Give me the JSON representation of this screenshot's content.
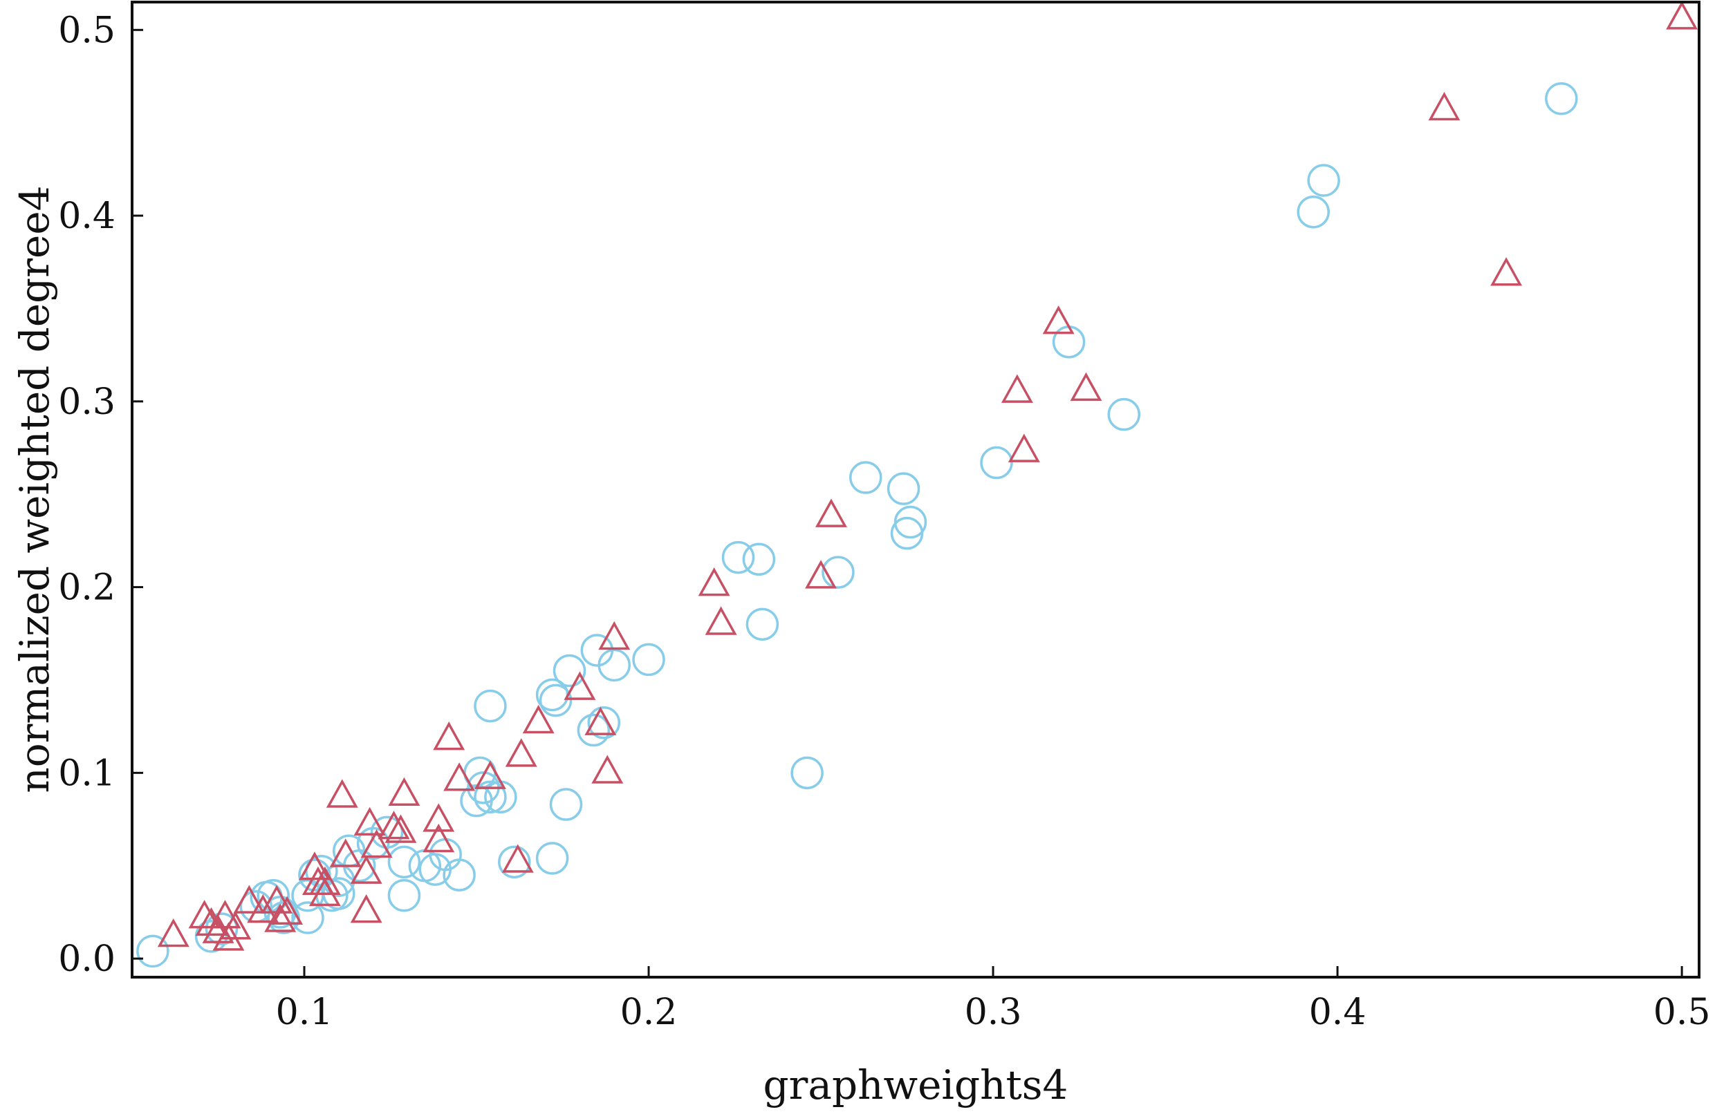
{
  "chart_data": {
    "type": "scatter",
    "title": "",
    "xlabel": "graphweights4",
    "ylabel": "normalized weighted degree4",
    "xlim": [
      0.05,
      0.505
    ],
    "ylim": [
      -0.01,
      0.515
    ],
    "xticks": [
      {
        "value": 0.1,
        "label": "0.1"
      },
      {
        "value": 0.2,
        "label": "0.2"
      },
      {
        "value": 0.3,
        "label": "0.3"
      },
      {
        "value": 0.4,
        "label": "0.4"
      },
      {
        "value": 0.5,
        "label": "0.5"
      }
    ],
    "yticks": [
      {
        "value": 0.0,
        "label": "0.0"
      },
      {
        "value": 0.1,
        "label": "0.1"
      },
      {
        "value": 0.2,
        "label": "0.2"
      },
      {
        "value": 0.3,
        "label": "0.3"
      },
      {
        "value": 0.4,
        "label": "0.4"
      },
      {
        "value": 0.5,
        "label": "0.5"
      }
    ],
    "grid": false,
    "legend": "none",
    "series": [
      {
        "marker": "circle",
        "color": "#87CDEA",
        "points": [
          [
            0.056,
            0.004
          ],
          [
            0.073,
            0.012
          ],
          [
            0.076,
            0.016
          ],
          [
            0.086,
            0.028
          ],
          [
            0.089,
            0.033
          ],
          [
            0.091,
            0.034
          ],
          [
            0.093,
            0.025
          ],
          [
            0.094,
            0.022
          ],
          [
            0.101,
            0.022
          ],
          [
            0.101,
            0.034
          ],
          [
            0.103,
            0.045
          ],
          [
            0.105,
            0.047
          ],
          [
            0.108,
            0.034
          ],
          [
            0.11,
            0.035
          ],
          [
            0.11,
            0.042
          ],
          [
            0.113,
            0.058
          ],
          [
            0.116,
            0.05
          ],
          [
            0.12,
            0.062
          ],
          [
            0.124,
            0.068
          ],
          [
            0.129,
            0.052
          ],
          [
            0.129,
            0.034
          ],
          [
            0.135,
            0.05
          ],
          [
            0.138,
            0.048
          ],
          [
            0.141,
            0.056
          ],
          [
            0.145,
            0.045
          ],
          [
            0.15,
            0.085
          ],
          [
            0.151,
            0.1
          ],
          [
            0.152,
            0.092
          ],
          [
            0.154,
            0.087
          ],
          [
            0.154,
            0.136
          ],
          [
            0.157,
            0.087
          ],
          [
            0.161,
            0.052
          ],
          [
            0.172,
            0.054
          ],
          [
            0.172,
            0.142
          ],
          [
            0.173,
            0.139
          ],
          [
            0.176,
            0.083
          ],
          [
            0.177,
            0.155
          ],
          [
            0.184,
            0.123
          ],
          [
            0.185,
            0.166
          ],
          [
            0.187,
            0.127
          ],
          [
            0.19,
            0.158
          ],
          [
            0.2,
            0.161
          ],
          [
            0.226,
            0.216
          ],
          [
            0.232,
            0.215
          ],
          [
            0.233,
            0.18
          ],
          [
            0.246,
            0.1
          ],
          [
            0.255,
            0.208
          ],
          [
            0.263,
            0.259
          ],
          [
            0.274,
            0.253
          ],
          [
            0.275,
            0.229
          ],
          [
            0.276,
            0.235
          ],
          [
            0.301,
            0.267
          ],
          [
            0.322,
            0.332
          ],
          [
            0.338,
            0.293
          ],
          [
            0.393,
            0.402
          ],
          [
            0.396,
            0.419
          ],
          [
            0.465,
            0.463
          ]
        ]
      },
      {
        "marker": "triangle",
        "color": "#C75064",
        "points": [
          [
            0.062,
            0.012
          ],
          [
            0.071,
            0.022
          ],
          [
            0.073,
            0.018
          ],
          [
            0.075,
            0.014
          ],
          [
            0.077,
            0.022
          ],
          [
            0.078,
            0.01
          ],
          [
            0.08,
            0.016
          ],
          [
            0.084,
            0.03
          ],
          [
            0.088,
            0.025
          ],
          [
            0.092,
            0.03
          ],
          [
            0.093,
            0.02
          ],
          [
            0.095,
            0.024
          ],
          [
            0.103,
            0.048
          ],
          [
            0.104,
            0.04
          ],
          [
            0.106,
            0.034
          ],
          [
            0.106,
            0.04
          ],
          [
            0.111,
            0.087
          ],
          [
            0.112,
            0.055
          ],
          [
            0.118,
            0.046
          ],
          [
            0.118,
            0.025
          ],
          [
            0.119,
            0.072
          ],
          [
            0.121,
            0.06
          ],
          [
            0.126,
            0.07
          ],
          [
            0.128,
            0.068
          ],
          [
            0.129,
            0.088
          ],
          [
            0.139,
            0.074
          ],
          [
            0.139,
            0.063
          ],
          [
            0.142,
            0.118
          ],
          [
            0.145,
            0.096
          ],
          [
            0.154,
            0.097
          ],
          [
            0.162,
            0.052
          ],
          [
            0.163,
            0.109
          ],
          [
            0.168,
            0.127
          ],
          [
            0.18,
            0.145
          ],
          [
            0.186,
            0.126
          ],
          [
            0.188,
            0.1
          ],
          [
            0.19,
            0.172
          ],
          [
            0.219,
            0.201
          ],
          [
            0.221,
            0.18
          ],
          [
            0.25,
            0.205
          ],
          [
            0.253,
            0.238
          ],
          [
            0.307,
            0.305
          ],
          [
            0.309,
            0.273
          ],
          [
            0.319,
            0.342
          ],
          [
            0.327,
            0.306
          ],
          [
            0.431,
            0.457
          ],
          [
            0.449,
            0.368
          ],
          [
            0.5,
            0.506
          ]
        ]
      }
    ]
  }
}
